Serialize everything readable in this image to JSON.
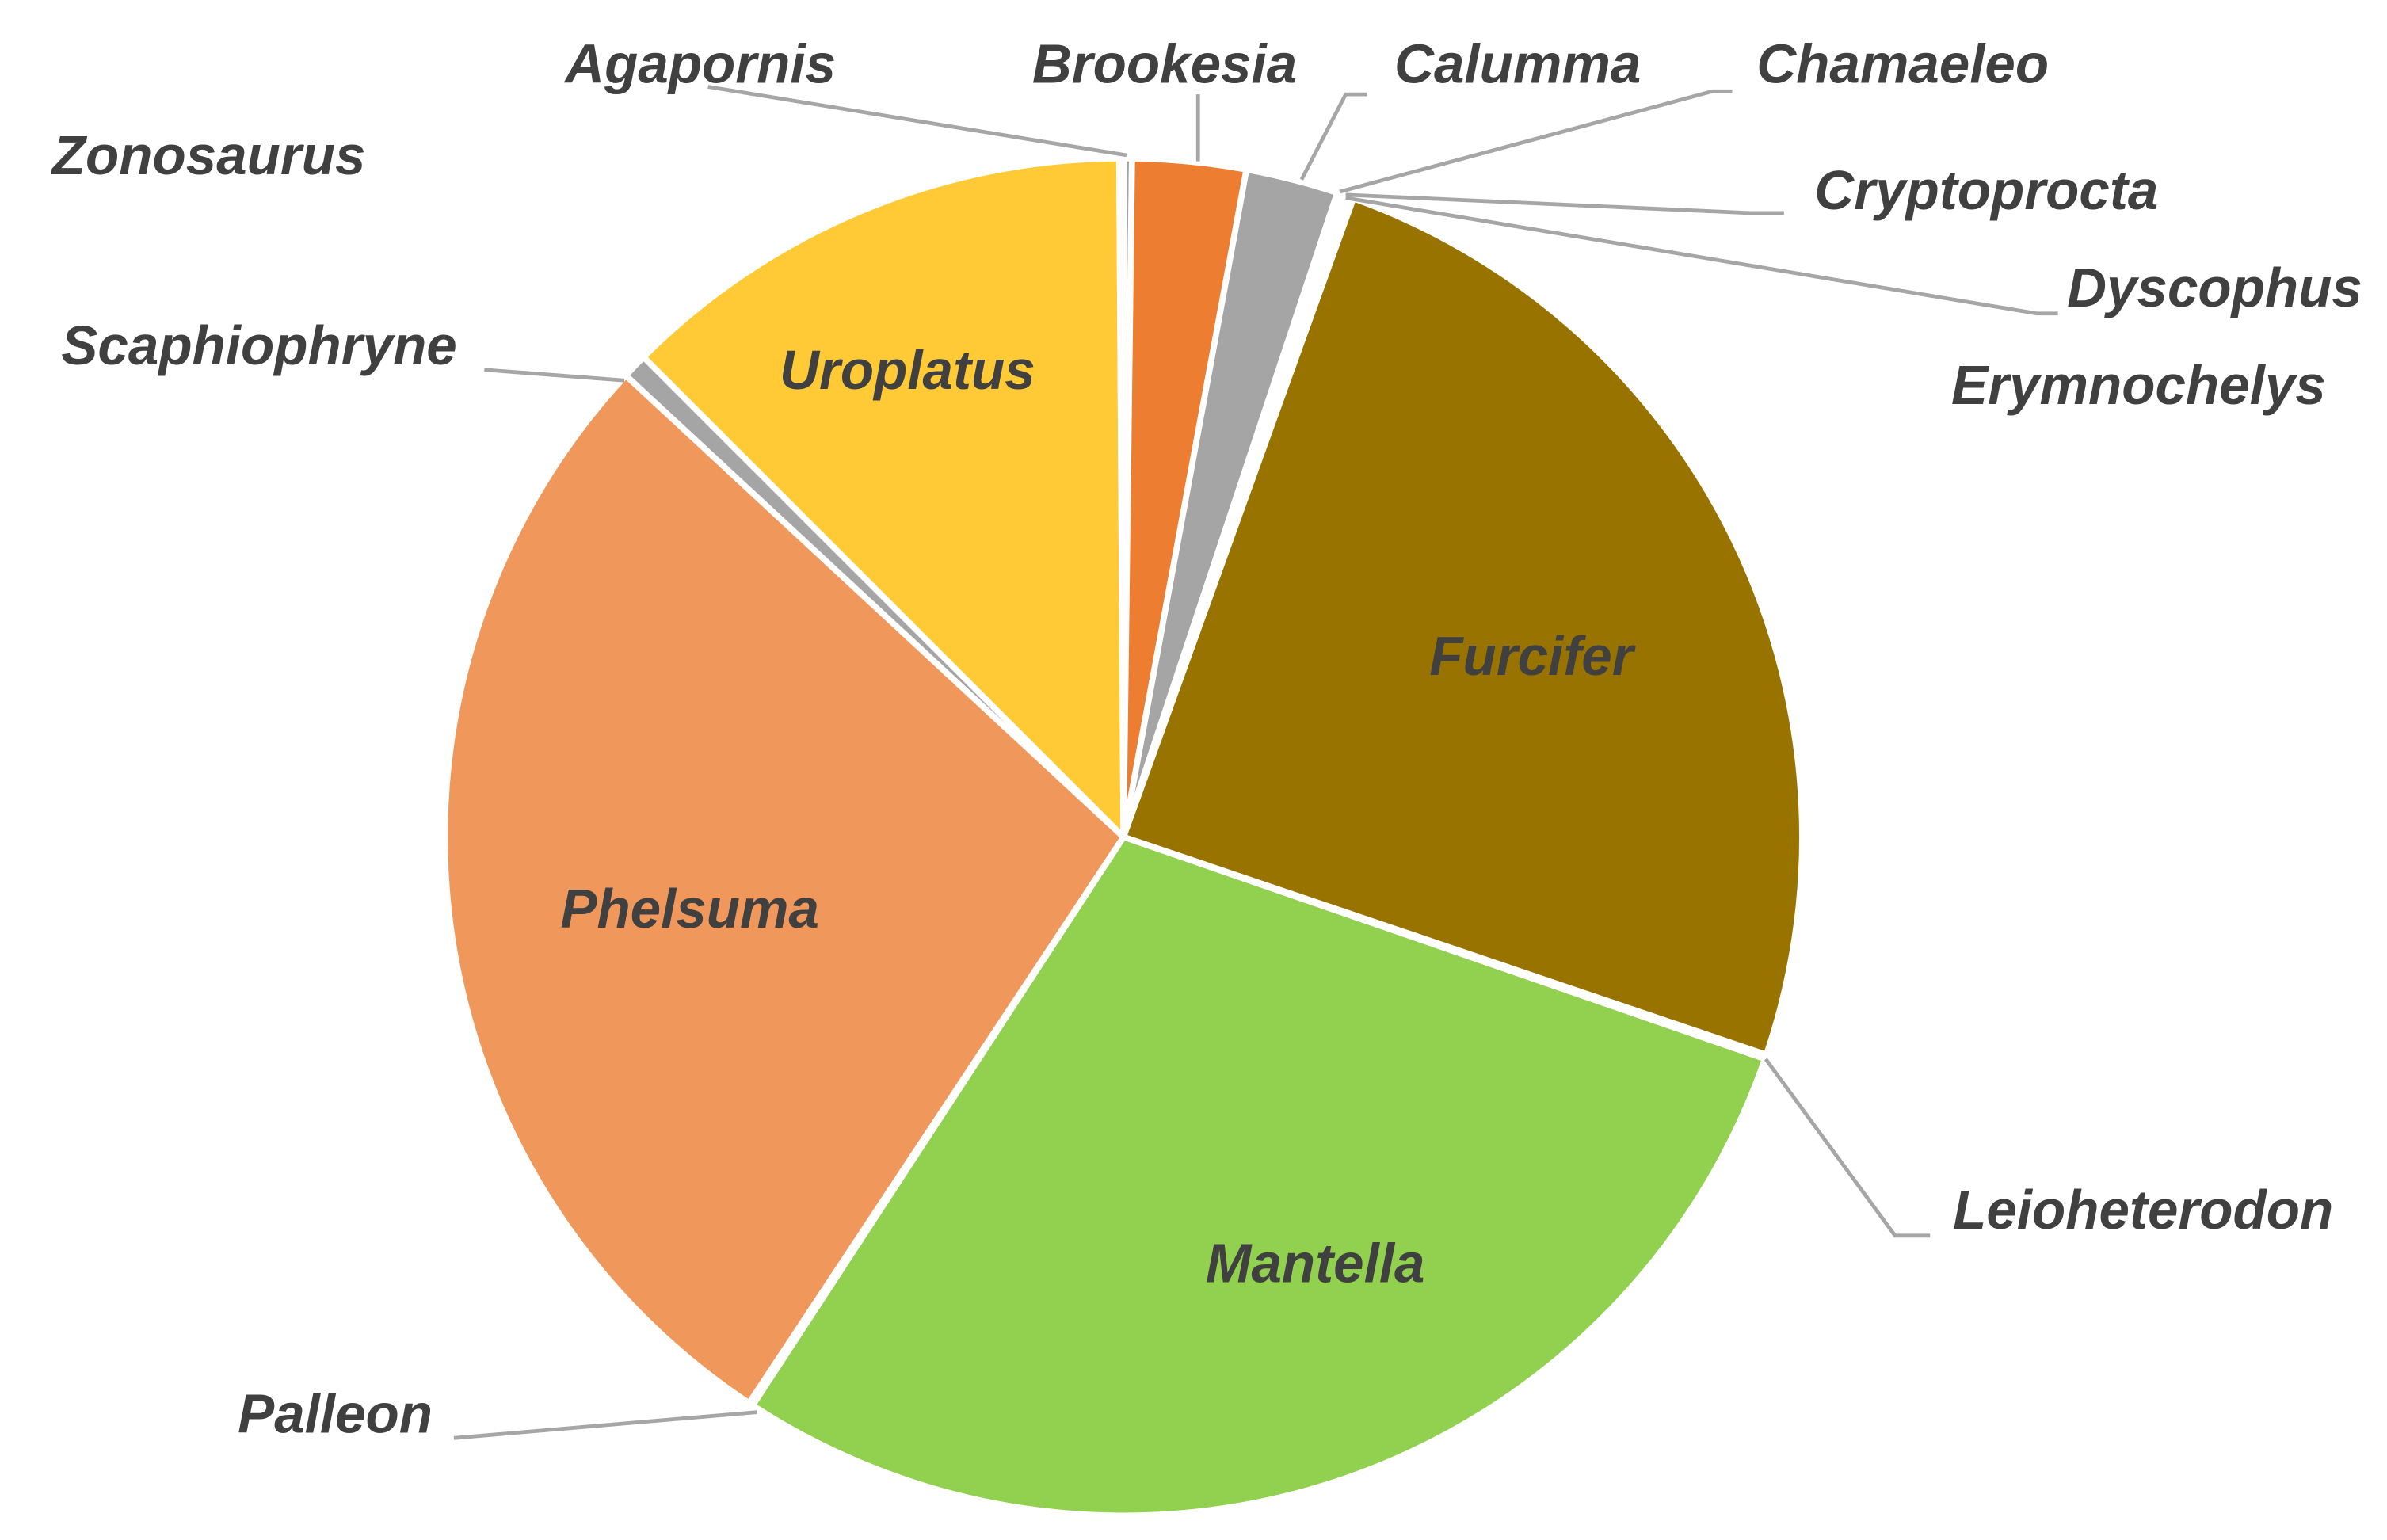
{
  "chart_data": {
    "type": "pie",
    "categories": [
      "Agapornis",
      "Brookesia",
      "Calumma",
      "Chamaeleo",
      "Cryptoprocta",
      "Dyscophus",
      "Erymnochelys",
      "Furcifer",
      "Leioheterodon",
      "Mantella",
      "Palleon",
      "Phelsuma",
      "Scaphiophryne",
      "Uroplatus",
      "Zonosaurus"
    ],
    "values": [
      0.2,
      2.7,
      2.2,
      0.1,
      0.1,
      0.1,
      0.1,
      24.7,
      0.1,
      28.9,
      0.1,
      27.6,
      0.6,
      12.4,
      0.1
    ],
    "colors": [
      "#a5a5a5",
      "#ed7d31",
      "#a5a5a5",
      "#ffc000",
      "#5b9bd5",
      "#70ad47",
      "#264478",
      "#997300",
      "#636363",
      "#92d050",
      "#255e91",
      "#f0985c",
      "#a5a5a5",
      "#ffca36",
      "#9e480e"
    ]
  }
}
